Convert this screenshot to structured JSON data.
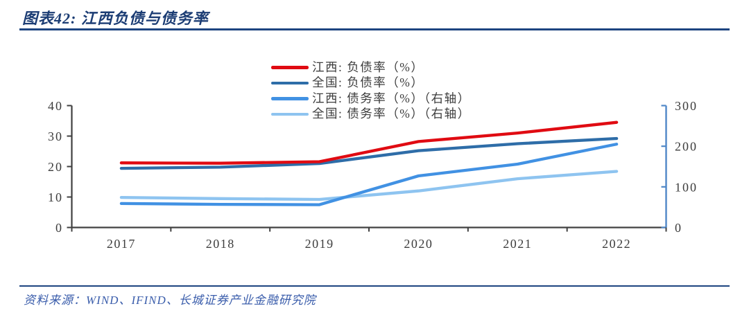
{
  "header": {
    "title": "图表42:  江西负债与债务率"
  },
  "footer": {
    "source": "资料来源：WIND、IFIND、长城证券产业金融研究院"
  },
  "colors": {
    "title_navy": "#1c3d74",
    "divider_blue": "#1d4480",
    "source_blue": "#3a5dab",
    "axis_gray": "#404040",
    "right_axis_blue": "#4f87c7",
    "tick_label_gray": "#3c3c3c"
  },
  "chart_data": {
    "type": "line",
    "x": [
      "2017",
      "2018",
      "2019",
      "2020",
      "2021",
      "2022"
    ],
    "series": [
      {
        "name": "江西: 负债率（%）",
        "axis": "left",
        "color": "#e00b12",
        "values": [
          21.2,
          21.1,
          21.6,
          28.2,
          31.0,
          34.5
        ]
      },
      {
        "name": "全国: 负债率（%）",
        "axis": "left",
        "color": "#2e6da8",
        "values": [
          19.4,
          19.8,
          21.0,
          25.2,
          27.5,
          29.2
        ]
      },
      {
        "name": "江西: 债务率（%）（右轴）",
        "axis": "right",
        "color": "#4191e3",
        "values": [
          59,
          57,
          56,
          127,
          156,
          205
        ]
      },
      {
        "name": "全国: 债务率（%）（右轴）",
        "axis": "right",
        "color": "#8ec4f0",
        "values": [
          74,
          71,
          69,
          90,
          120,
          138
        ]
      }
    ],
    "left_axis": {
      "ticks": [
        0,
        10,
        20,
        30,
        40
      ],
      "range": [
        0,
        40
      ]
    },
    "right_axis": {
      "ticks": [
        0,
        100,
        200,
        300
      ],
      "range": [
        0,
        300
      ]
    },
    "legend_position": "top-center",
    "grid": false
  }
}
